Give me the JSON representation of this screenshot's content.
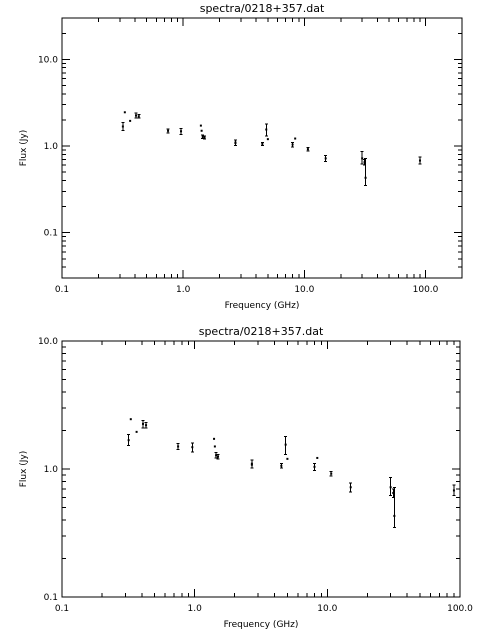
{
  "chart_data": [
    {
      "type": "scatter",
      "title": "spectra/0218+357.dat",
      "xlabel": "Frequency (GHz)",
      "ylabel": "Flux (Jy)",
      "xscale": "log",
      "yscale": "log",
      "xlim": [
        0.1,
        200
      ],
      "ylim": [
        0.03,
        30
      ],
      "xticks": [
        0.1,
        1.0,
        10.0,
        100.0
      ],
      "xtick_labels": [
        "0.1",
        "1.0",
        "10.0",
        "100.0"
      ],
      "yticks": [
        0.1,
        1.0,
        10.0
      ],
      "ytick_labels": [
        "0.1",
        "1.0",
        "10.0"
      ],
      "grid": false,
      "points": [
        {
          "x": 0.318,
          "y": 1.68,
          "ylo": 1.52,
          "yhi": 1.86
        },
        {
          "x": 0.33,
          "y": 2.45,
          "ylo": 2.45,
          "yhi": 2.45
        },
        {
          "x": 0.365,
          "y": 1.95,
          "ylo": 1.95,
          "yhi": 1.95
        },
        {
          "x": 0.408,
          "y": 2.25,
          "ylo": 2.1,
          "yhi": 2.4
        },
        {
          "x": 0.43,
          "y": 2.2,
          "ylo": 2.1,
          "yhi": 2.3
        },
        {
          "x": 0.75,
          "y": 1.5,
          "ylo": 1.42,
          "yhi": 1.58
        },
        {
          "x": 0.96,
          "y": 1.48,
          "ylo": 1.36,
          "yhi": 1.6
        },
        {
          "x": 1.4,
          "y": 1.72,
          "ylo": 1.72,
          "yhi": 1.72
        },
        {
          "x": 1.42,
          "y": 1.5,
          "ylo": 1.5,
          "yhi": 1.5
        },
        {
          "x": 1.45,
          "y": 1.28,
          "ylo": 1.22,
          "yhi": 1.34
        },
        {
          "x": 1.5,
          "y": 1.25,
          "ylo": 1.2,
          "yhi": 1.3
        },
        {
          "x": 2.7,
          "y": 1.1,
          "ylo": 1.02,
          "yhi": 1.18
        },
        {
          "x": 2.7,
          "y": 1.08,
          "ylo": 1.08,
          "yhi": 1.08
        },
        {
          "x": 4.5,
          "y": 1.06,
          "ylo": 1.02,
          "yhi": 1.1
        },
        {
          "x": 4.85,
          "y": 1.55,
          "ylo": 1.3,
          "yhi": 1.8
        },
        {
          "x": 5.0,
          "y": 1.2,
          "ylo": 1.2,
          "yhi": 1.2
        },
        {
          "x": 8.0,
          "y": 1.04,
          "ylo": 0.97,
          "yhi": 1.1
        },
        {
          "x": 8.4,
          "y": 1.22,
          "ylo": 1.22,
          "yhi": 1.22
        },
        {
          "x": 10.7,
          "y": 0.92,
          "ylo": 0.88,
          "yhi": 0.96
        },
        {
          "x": 15.0,
          "y": 0.72,
          "ylo": 0.66,
          "yhi": 0.78
        },
        {
          "x": 30.0,
          "y": 0.72,
          "ylo": 0.62,
          "yhi": 0.86
        },
        {
          "x": 31.4,
          "y": 0.65,
          "ylo": 0.6,
          "yhi": 0.7
        },
        {
          "x": 32.0,
          "y": 0.43,
          "ylo": 0.35,
          "yhi": 0.72
        },
        {
          "x": 90.0,
          "y": 0.68,
          "ylo": 0.62,
          "yhi": 0.75
        }
      ]
    },
    {
      "type": "scatter",
      "title": "spectra/0218+357.dat",
      "xlabel": "Frequency (GHz)",
      "ylabel": "Flux (Jy)",
      "xscale": "log",
      "yscale": "log",
      "xlim": [
        0.1,
        100
      ],
      "ylim": [
        0.1,
        10
      ],
      "xticks": [
        0.1,
        1.0,
        10.0,
        100.0
      ],
      "xtick_labels": [
        "0.1",
        "1.0",
        "10.0",
        "100.0"
      ],
      "yticks": [
        0.1,
        1.0,
        10.0
      ],
      "ytick_labels": [
        "0.1",
        "1.0",
        "10.0"
      ],
      "grid": false,
      "points": [
        {
          "x": 0.318,
          "y": 1.68,
          "ylo": 1.52,
          "yhi": 1.86
        },
        {
          "x": 0.33,
          "y": 2.45,
          "ylo": 2.45,
          "yhi": 2.45
        },
        {
          "x": 0.365,
          "y": 1.95,
          "ylo": 1.95,
          "yhi": 1.95
        },
        {
          "x": 0.408,
          "y": 2.25,
          "ylo": 2.1,
          "yhi": 2.4
        },
        {
          "x": 0.43,
          "y": 2.2,
          "ylo": 2.1,
          "yhi": 2.3
        },
        {
          "x": 0.75,
          "y": 1.5,
          "ylo": 1.42,
          "yhi": 1.58
        },
        {
          "x": 0.96,
          "y": 1.48,
          "ylo": 1.36,
          "yhi": 1.6
        },
        {
          "x": 1.4,
          "y": 1.72,
          "ylo": 1.72,
          "yhi": 1.72
        },
        {
          "x": 1.42,
          "y": 1.5,
          "ylo": 1.5,
          "yhi": 1.5
        },
        {
          "x": 1.45,
          "y": 1.28,
          "ylo": 1.22,
          "yhi": 1.34
        },
        {
          "x": 1.5,
          "y": 1.25,
          "ylo": 1.2,
          "yhi": 1.3
        },
        {
          "x": 2.7,
          "y": 1.1,
          "ylo": 1.02,
          "yhi": 1.18
        },
        {
          "x": 2.7,
          "y": 1.08,
          "ylo": 1.08,
          "yhi": 1.08
        },
        {
          "x": 4.5,
          "y": 1.06,
          "ylo": 1.02,
          "yhi": 1.1
        },
        {
          "x": 4.85,
          "y": 1.55,
          "ylo": 1.3,
          "yhi": 1.8
        },
        {
          "x": 5.0,
          "y": 1.2,
          "ylo": 1.2,
          "yhi": 1.2
        },
        {
          "x": 8.0,
          "y": 1.04,
          "ylo": 0.97,
          "yhi": 1.1
        },
        {
          "x": 8.4,
          "y": 1.22,
          "ylo": 1.22,
          "yhi": 1.22
        },
        {
          "x": 10.7,
          "y": 0.92,
          "ylo": 0.88,
          "yhi": 0.96
        },
        {
          "x": 15.0,
          "y": 0.72,
          "ylo": 0.66,
          "yhi": 0.78
        },
        {
          "x": 30.0,
          "y": 0.72,
          "ylo": 0.62,
          "yhi": 0.86
        },
        {
          "x": 31.4,
          "y": 0.65,
          "ylo": 0.6,
          "yhi": 0.7
        },
        {
          "x": 32.0,
          "y": 0.43,
          "ylo": 0.35,
          "yhi": 0.72
        },
        {
          "x": 90.0,
          "y": 0.68,
          "ylo": 0.62,
          "yhi": 0.75
        }
      ]
    }
  ]
}
